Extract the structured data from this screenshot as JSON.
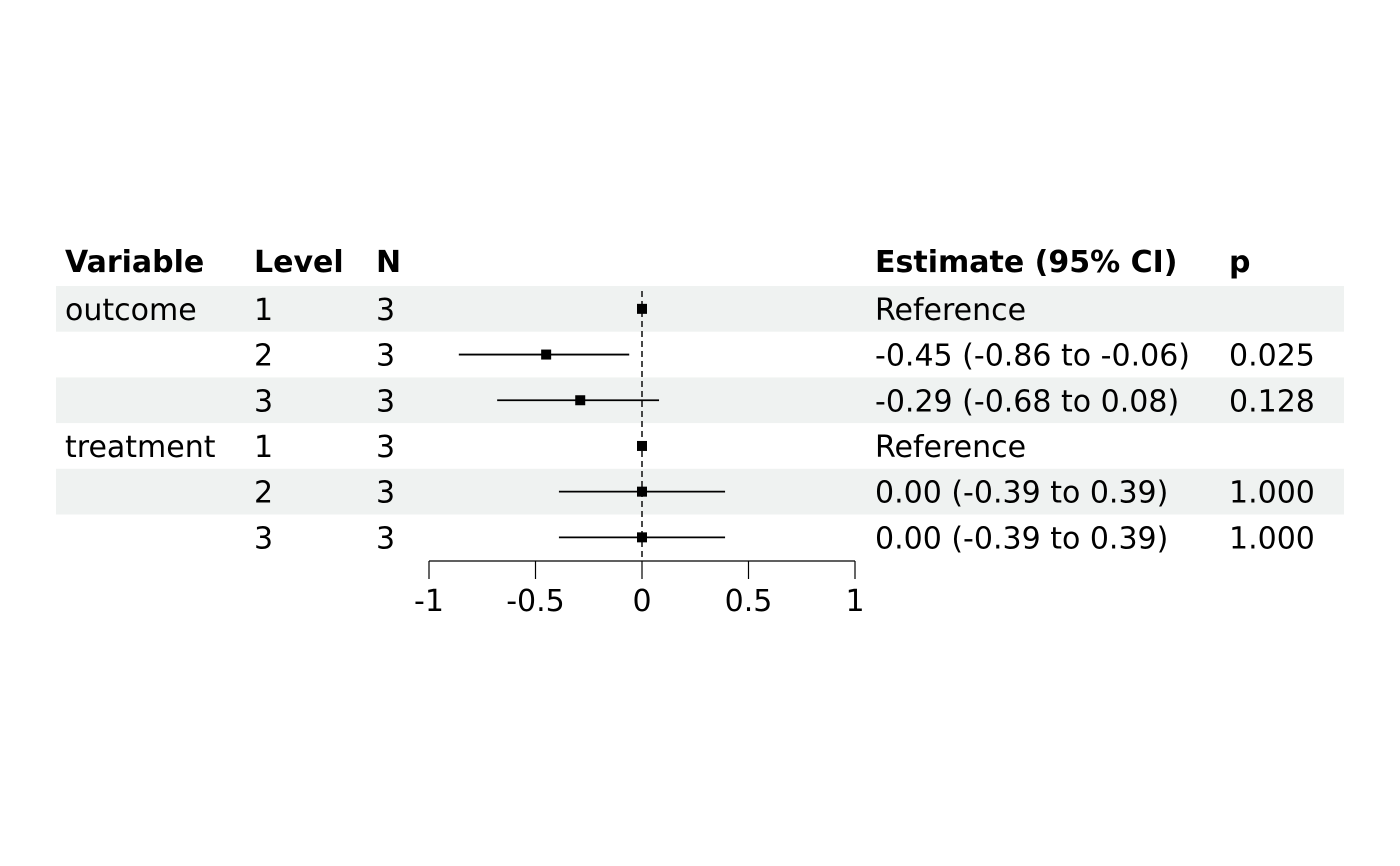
{
  "headers": {
    "variable": "Variable",
    "level": "Level",
    "n": "N",
    "estimate": "Estimate (95% CI)",
    "p": "p"
  },
  "rows": [
    {
      "variable": "outcome",
      "level": "1",
      "n": "3",
      "estimate_text": "Reference",
      "p": ""
    },
    {
      "variable": "",
      "level": "2",
      "n": "3",
      "estimate_text": "-0.45 (-0.86 to -0.06)",
      "p": "0.025"
    },
    {
      "variable": "",
      "level": "3",
      "n": "3",
      "estimate_text": "-0.29 (-0.68 to 0.08)",
      "p": "0.128"
    },
    {
      "variable": "treatment",
      "level": "1",
      "n": "3",
      "estimate_text": "Reference",
      "p": ""
    },
    {
      "variable": "",
      "level": "2",
      "n": "3",
      "estimate_text": "0.00 (-0.39 to 0.39)",
      "p": "1.000"
    },
    {
      "variable": "",
      "level": "3",
      "n": "3",
      "estimate_text": "0.00 (-0.39 to 0.39)",
      "p": "1.000"
    }
  ],
  "chart_data": {
    "type": "scatter",
    "subtype": "forest",
    "points": [
      {
        "estimate": 0,
        "lower": null,
        "upper": null
      },
      {
        "estimate": -0.45,
        "lower": -0.86,
        "upper": -0.06
      },
      {
        "estimate": -0.29,
        "lower": -0.68,
        "upper": 0.08
      },
      {
        "estimate": 0,
        "lower": null,
        "upper": null
      },
      {
        "estimate": 0,
        "lower": -0.39,
        "upper": 0.39
      },
      {
        "estimate": 0,
        "lower": -0.39,
        "upper": 0.39
      }
    ],
    "xlim": [
      -1,
      1
    ],
    "x_ticks": [
      "-1",
      "-0.5",
      "0",
      "0.5",
      "1"
    ],
    "reference_line": 0,
    "grid": false,
    "colors": {
      "stripe": "#eff2f1",
      "ink": "#000000"
    }
  }
}
